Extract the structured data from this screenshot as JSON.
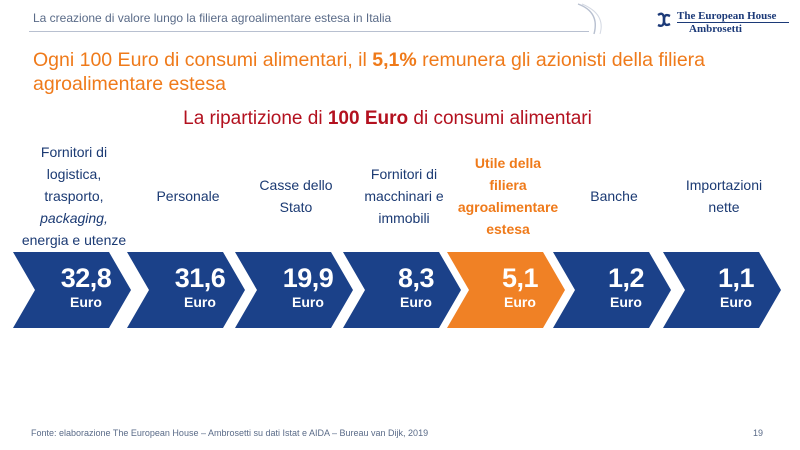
{
  "header": {
    "title": "La creazione di valore lungo la filiera agroalimentare estesa in Italia",
    "logo_line1": "The European House",
    "logo_line2": "Ambrosetti"
  },
  "headline": {
    "prefix": "Ogni 100 Euro di consumi alimentari, il ",
    "highlight": "5,1%",
    "suffix": " remunera gli azionisti della filiera agroalimentare estesa"
  },
  "subtitle": {
    "prefix": "La ripartizione di ",
    "highlight": "100 Euro",
    "suffix": " di consumi alimentari"
  },
  "colors": {
    "navy": "#1b4189",
    "orange": "#f08125",
    "headline": "#ef7a1a",
    "subtitle": "#b3111f"
  },
  "segments": [
    {
      "lines": [
        "Fornitori di",
        "logistica,",
        "trasporto,",
        "packaging,",
        "energia e utenze"
      ],
      "value": "32,8",
      "unit": "Euro",
      "highlight": false
    },
    {
      "lines": [
        "Personale"
      ],
      "value": "31,6",
      "unit": "Euro",
      "highlight": false
    },
    {
      "lines": [
        "Casse dello",
        "Stato"
      ],
      "value": "19,9",
      "unit": "Euro",
      "highlight": false
    },
    {
      "lines": [
        "Fornitori di",
        "macchinari e",
        "immobili"
      ],
      "value": "8,3",
      "unit": "Euro",
      "highlight": false
    },
    {
      "lines": [
        "Utile della",
        "filiera",
        "agroalimentare",
        "estesa"
      ],
      "value": "5,1",
      "unit": "Euro",
      "highlight": true
    },
    {
      "lines": [
        "Banche"
      ],
      "value": "1,2",
      "unit": "Euro",
      "highlight": false
    },
    {
      "lines": [
        "Importazioni",
        "nette"
      ],
      "value": "1,1",
      "unit": "Euro",
      "highlight": false
    }
  ],
  "footer": {
    "source": "Fonte: elaborazione The European House – Ambrosetti su dati Istat e AIDA – Bureau van Dijk, 2019",
    "page_number": "19"
  }
}
